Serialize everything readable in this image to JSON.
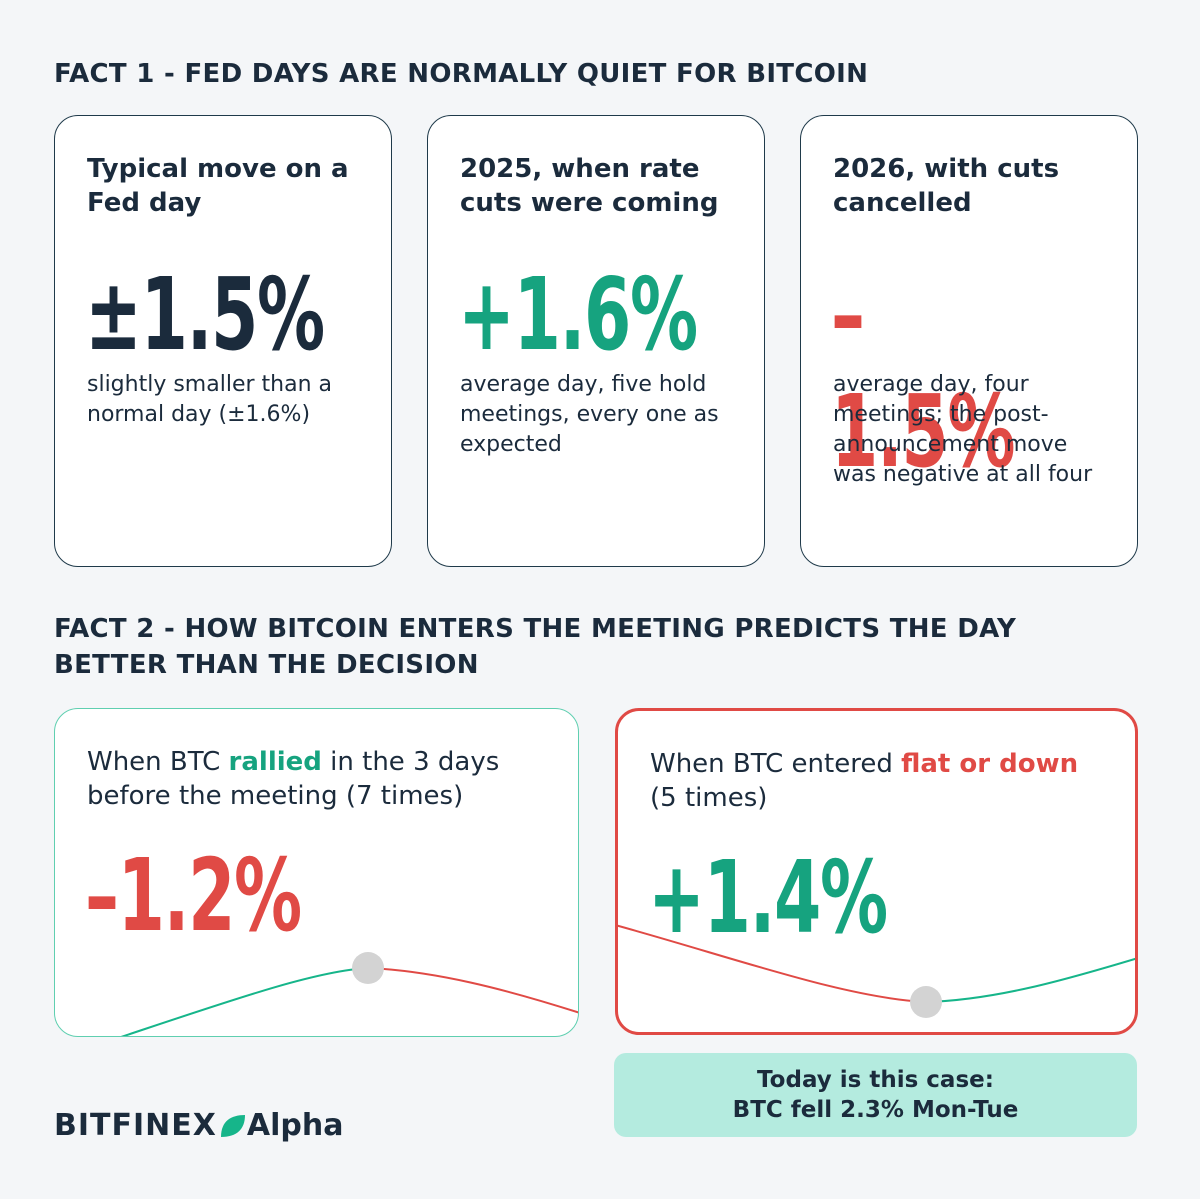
{
  "fact1": {
    "heading": "FACT 1 - FED DAYS ARE NORMALLY QUIET FOR BITCOIN",
    "cards": [
      {
        "title": "Typical move on a Fed day",
        "value": "±1.5%",
        "note": "slightly smaller than a normal day (±1.6%)"
      },
      {
        "title": "2025, when rate cuts were coming",
        "value": "+1.6%",
        "note": "average day, five hold meetings, every one as expected"
      },
      {
        "title": "2026, with cuts cancelled",
        "value": "–1.5%",
        "note": "average day, four meetings; the post-announcement move was negative at all four"
      }
    ]
  },
  "fact2": {
    "heading": "FACT 2 - HOW BITCOIN ENTERS THE MEETING PREDICTS THE DAY BETTER THAN THE DECISION",
    "cards": [
      {
        "title_before": "When BTC",
        "title_highlight": "rallied",
        "title_after": "in the 3 days before the meeting (7 times)",
        "value": "–1.2%"
      },
      {
        "title_before": "When BTC entered",
        "title_highlight": "flat or down",
        "title_after": "(5 times)",
        "value": "+1.4%"
      }
    ],
    "callout": {
      "line1": "Today is this case:",
      "line2": "BTC fell 2.3% Mon-Tue"
    }
  },
  "brand": {
    "name": "BITFINEX",
    "product": "Alpha"
  }
}
